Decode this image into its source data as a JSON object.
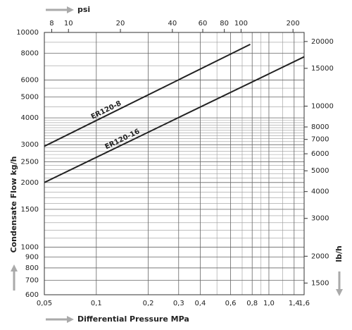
{
  "chart_data": {
    "type": "line",
    "xscale": "log",
    "yscale": "log",
    "grid": true,
    "xlabel": "Differential Pressure MPa",
    "ylabel": "Condensate Flow kg/h",
    "x2label": "psi",
    "y2label": "lb/h",
    "xlim": [
      0.05,
      1.6
    ],
    "xticks": [
      {
        "value": 0.05,
        "label": "0,05"
      },
      {
        "value": 0.1,
        "label": "0,1"
      },
      {
        "value": 0.2,
        "label": "0,2"
      },
      {
        "value": 0.3,
        "label": "0,3"
      },
      {
        "value": 0.4,
        "label": "0,4"
      },
      {
        "value": 0.6,
        "label": "0,6"
      },
      {
        "value": 0.8,
        "label": "0,8"
      },
      {
        "value": 1.0,
        "label": "1,0"
      },
      {
        "value": 1.4,
        "label": "1,4"
      },
      {
        "value": 1.6,
        "label": "1,6"
      }
    ],
    "xminor": [
      0.5,
      0.7,
      0.9,
      1.2
    ],
    "x2lim": [
      7.25,
      232
    ],
    "x2ticks": [
      8,
      10,
      20,
      40,
      60,
      80,
      100,
      200
    ],
    "ylim": [
      600,
      10000
    ],
    "yticks": [
      600,
      700,
      800,
      900,
      1000,
      1500,
      2000,
      2500,
      3000,
      4000,
      5000,
      6000,
      8000,
      10000
    ],
    "yminor": [
      1100,
      1200,
      1300,
      1400,
      1600,
      1700,
      1800,
      1900,
      2100,
      2200,
      2300,
      2400,
      2600,
      2700,
      2800,
      2900,
      3100,
      3200,
      3300,
      3400,
      3500,
      3600,
      3700,
      3800,
      3900,
      4500,
      5500,
      7000,
      9000
    ],
    "y2lim": [
      1323,
      22046
    ],
    "y2ticks": [
      1500,
      2000,
      3000,
      4000,
      5000,
      6000,
      7000,
      8000,
      10000,
      15000,
      20000
    ],
    "series": [
      {
        "name": "ER120-8",
        "color": "#222222",
        "x": [
          0.05,
          0.78
        ],
        "values": [
          2950,
          8800
        ]
      },
      {
        "name": "ER120-16",
        "color": "#222222",
        "x": [
          0.05,
          1.6
        ],
        "values": [
          2000,
          7700
        ]
      }
    ]
  }
}
